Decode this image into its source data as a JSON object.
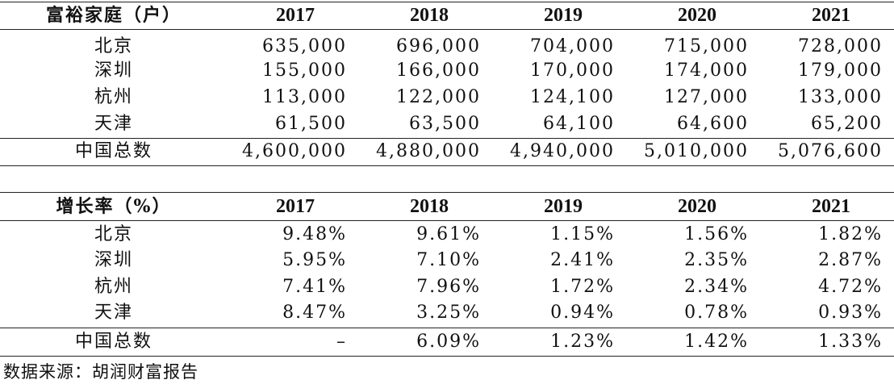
{
  "table1": {
    "header": [
      "富裕家庭（户）",
      "2017",
      "2018",
      "2019",
      "2020",
      "2021"
    ],
    "rows": [
      [
        "北京",
        "635,000",
        "696,000",
        "704,000",
        "715,000",
        "728,000"
      ],
      [
        "深圳",
        "155,000",
        "166,000",
        "170,000",
        "174,000",
        "179,000"
      ],
      [
        "杭州",
        "113,000",
        "122,000",
        "124,100",
        "127,000",
        "133,000"
      ],
      [
        "天津",
        "61,500",
        "63,500",
        "64,100",
        "64,600",
        "65,200"
      ],
      [
        "中国总数",
        "4,600,000",
        "4,880,000",
        "4,940,000",
        "5,010,000",
        "5,076,600"
      ]
    ]
  },
  "table2": {
    "header": [
      "增长率（%）",
      "2017",
      "2018",
      "2019",
      "2020",
      "2021"
    ],
    "rows": [
      [
        "北京",
        "9.48%",
        "9.61%",
        "1.15%",
        "1.56%",
        "1.82%"
      ],
      [
        "深圳",
        "5.95%",
        "7.10%",
        "2.41%",
        "2.35%",
        "2.87%"
      ],
      [
        "杭州",
        "7.41%",
        "7.96%",
        "1.72%",
        "2.34%",
        "4.72%"
      ],
      [
        "天津",
        "8.47%",
        "3.25%",
        "0.94%",
        "0.78%",
        "0.93%"
      ],
      [
        "中国总数",
        "–",
        "6.09%",
        "1.23%",
        "1.42%",
        "1.33%"
      ]
    ]
  },
  "source": "数据来源：胡润财富报告"
}
